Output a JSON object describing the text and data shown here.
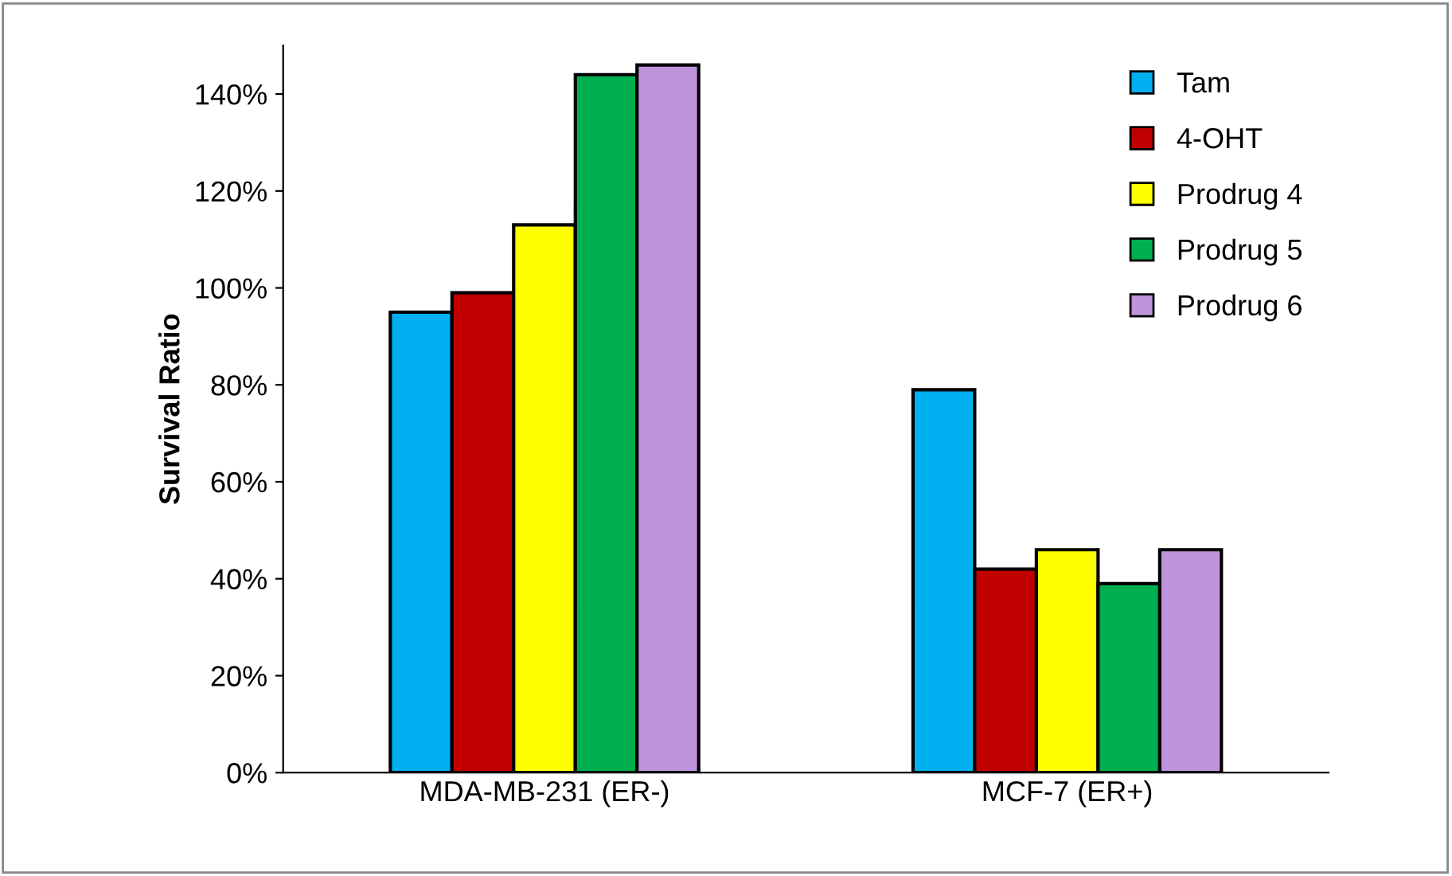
{
  "chart_data": {
    "type": "bar",
    "ylabel": "Survival Ratio",
    "categories": [
      "MDA-MB-231 (ER-)",
      "MCF-7 (ER+)"
    ],
    "series": [
      {
        "name": "Tam",
        "color": "#00b0f0",
        "values": [
          95,
          79
        ]
      },
      {
        "name": "4-OHT",
        "color": "#c00000",
        "values": [
          99,
          42
        ]
      },
      {
        "name": "Prodrug 4",
        "color": "#ffff00",
        "values": [
          113,
          46
        ]
      },
      {
        "name": "Prodrug 5",
        "color": "#00b050",
        "values": [
          144,
          39
        ]
      },
      {
        "name": "Prodrug 6",
        "color": "#bf94dd",
        "values": [
          146,
          46
        ]
      }
    ],
    "ylim": [
      0,
      150
    ],
    "yticks": [
      {
        "value": 0,
        "label": "0%"
      },
      {
        "value": 20,
        "label": "20%"
      },
      {
        "value": 40,
        "label": "40%"
      },
      {
        "value": 60,
        "label": "60%"
      },
      {
        "value": 80,
        "label": "80%"
      },
      {
        "value": 100,
        "label": "100%"
      },
      {
        "value": 120,
        "label": "120%"
      },
      {
        "value": 140,
        "label": "140%"
      }
    ],
    "grid": false,
    "legend": "top right"
  }
}
